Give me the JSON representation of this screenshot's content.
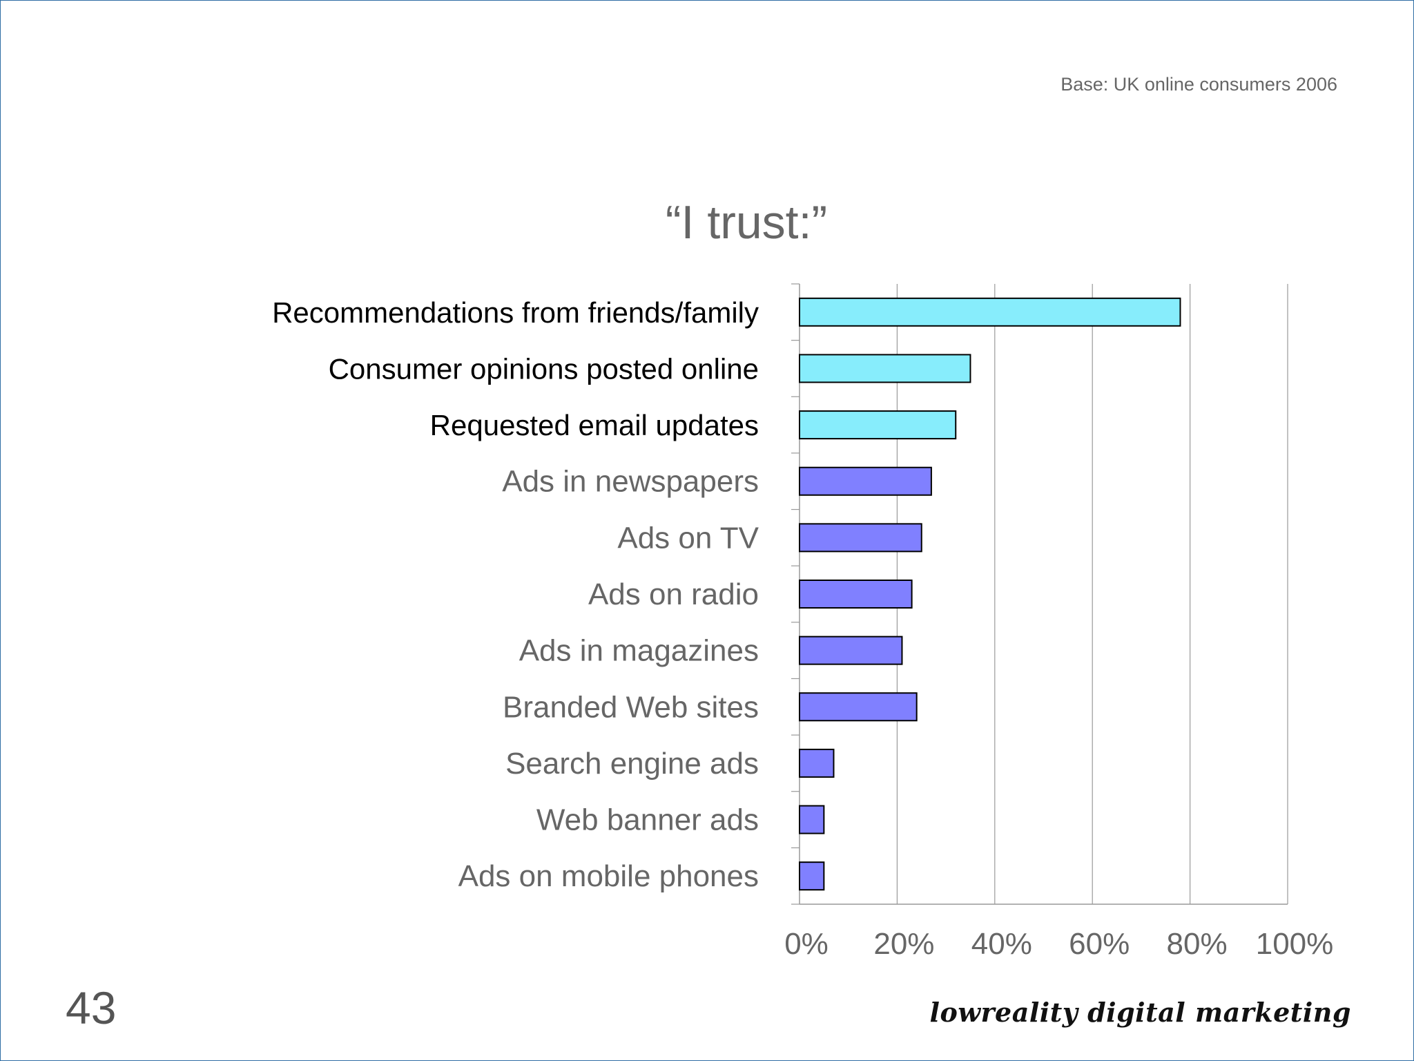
{
  "base_note": "Base: UK online consumers 2006",
  "slide_number": "43",
  "brand": "lowreality digital marketing",
  "colors": {
    "highlight_bar": "#87edfc",
    "other_bar": "#8080ff",
    "highlight_label": "#000000",
    "other_label": "#666666",
    "grid": "#999999"
  },
  "chart_data": {
    "type": "bar",
    "orientation": "horizontal",
    "title": "“I trust:”",
    "categories": [
      "Recommendations from friends/family",
      "Consumer opinions posted online",
      "Requested email updates",
      "Ads in newspapers",
      "Ads on TV",
      "Ads on radio",
      "Ads in magazines",
      "Branded Web sites",
      "Search engine ads",
      "Web banner ads",
      "Ads on mobile phones"
    ],
    "values": [
      78,
      35,
      32,
      27,
      25,
      23,
      21,
      24,
      7,
      5,
      5
    ],
    "highlighted": [
      true,
      true,
      true,
      false,
      false,
      false,
      false,
      false,
      false,
      false,
      false
    ],
    "xlim": [
      0,
      100
    ],
    "xticks": [
      "0%",
      "20%",
      "40%",
      "60%",
      "80%",
      "100%"
    ],
    "grid": true,
    "legend": "none"
  }
}
